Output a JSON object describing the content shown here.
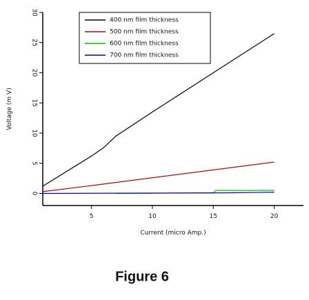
{
  "chart_data": {
    "type": "line",
    "caption": "Figure 6",
    "x_label": "Current (micro Amp.)",
    "y_label": "Voltage (m V)",
    "xlim": [
      1,
      22.4
    ],
    "ylim": [
      -2,
      30
    ],
    "xticks": [
      5,
      10,
      15,
      20
    ],
    "yticks": [
      0,
      5,
      10,
      15,
      20,
      25,
      30
    ],
    "legend": "top",
    "series": [
      {
        "name": "400 nm film thickness",
        "color": "#000000",
        "x": [
          1,
          5,
          6,
          7,
          10,
          15,
          20
        ],
        "values": [
          1.2,
          6.2,
          7.6,
          9.5,
          13.5,
          20,
          26.5
        ]
      },
      {
        "name": "500 nm film thickness",
        "color": "#c00000",
        "x": [
          1,
          5,
          10,
          15,
          20
        ],
        "values": [
          0.3,
          1.3,
          2.6,
          3.9,
          5.2
        ]
      },
      {
        "name": "600 nm film thickness",
        "color": "#00c000",
        "x": [
          7,
          15,
          15.2,
          20
        ],
        "values": [
          0,
          0.1,
          0.5,
          0.5
        ]
      },
      {
        "name": "700 nm film thickness",
        "color": "#0000c0",
        "x": [
          1,
          16,
          20
        ],
        "values": [
          0,
          0.1,
          0.2
        ]
      }
    ]
  }
}
